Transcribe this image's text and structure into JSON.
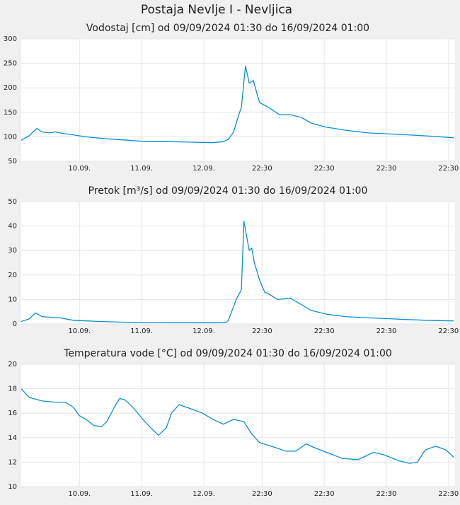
{
  "title": "Postaja Nevlje I - Nevljica",
  "chart_data": [
    {
      "type": "line",
      "title": "Vodostaj [cm] od 09/09/2024 01:30 do 16/09/2024 01:00",
      "color": "#0a8fd0",
      "x": [
        0,
        3,
        6,
        8,
        11,
        13,
        16,
        20,
        25,
        33,
        41,
        49,
        57,
        66,
        74,
        78,
        80,
        82,
        84,
        85,
        86.6,
        88,
        89.6,
        90.7,
        92,
        95.6,
        99.7,
        104,
        108,
        112,
        117.5,
        125.7,
        134,
        145,
        156,
        167
      ],
      "values": [
        93,
        102,
        117,
        110,
        108,
        110,
        107,
        104,
        100,
        96,
        93,
        90,
        90,
        89,
        88,
        90,
        95,
        110,
        145,
        160,
        245,
        210,
        215,
        195,
        170,
        160,
        145,
        145,
        140,
        128,
        120,
        113,
        108,
        105,
        102,
        98
      ],
      "xlim": [
        0,
        167.5
      ],
      "ylim": [
        50,
        300
      ],
      "yticks": [
        50,
        100,
        150,
        200,
        250,
        300
      ],
      "xticks": [
        {
          "value": 22.5,
          "label": "10.09."
        },
        {
          "value": 46.5,
          "label": "11.09."
        },
        {
          "value": 70.5,
          "label": "12.09."
        },
        {
          "value": 93,
          "label": "22:30"
        },
        {
          "value": 117,
          "label": "22:30"
        },
        {
          "value": 141,
          "label": "22:30"
        },
        {
          "value": 165,
          "label": "22:30"
        }
      ],
      "grid": true
    },
    {
      "type": "line",
      "title": "Pretok [m³/s] od 09/09/2024 01:30 do 16/09/2024 01:00",
      "color": "#0a8fd0",
      "x": [
        0,
        3,
        5.5,
        8,
        15,
        20,
        30,
        40,
        50,
        60,
        70,
        79,
        80,
        83,
        85,
        86,
        88,
        89,
        90,
        92,
        94,
        96,
        99,
        104,
        108,
        112,
        118,
        125,
        134,
        145,
        156,
        167
      ],
      "values": [
        1,
        2,
        4.5,
        3,
        2.5,
        1.5,
        1,
        0.7,
        0.6,
        0.5,
        0.5,
        0.5,
        1.5,
        10,
        14,
        42,
        30,
        31,
        25,
        18,
        13,
        12,
        10,
        10.5,
        8,
        5.5,
        4,
        3,
        2.5,
        2,
        1.5,
        1.2
      ],
      "xlim": [
        0,
        167.5
      ],
      "ylim": [
        0,
        50
      ],
      "yticks": [
        0,
        10,
        20,
        30,
        40,
        50
      ],
      "xticks": [
        {
          "value": 22.5,
          "label": "10.09."
        },
        {
          "value": 46.5,
          "label": "11.09."
        },
        {
          "value": 70.5,
          "label": "12.09."
        },
        {
          "value": 93,
          "label": "22:30"
        },
        {
          "value": 117,
          "label": "22:30"
        },
        {
          "value": 141,
          "label": "22:30"
        },
        {
          "value": 165,
          "label": "22:30"
        }
      ],
      "grid": true
    },
    {
      "type": "line",
      "title": "Temperatura vode [°C] od 09/09/2024 01:30 do 16/09/2024 01:00",
      "color": "#0a8fd0",
      "x": [
        0,
        3,
        8,
        13,
        17,
        20,
        22.5,
        25,
        28,
        31,
        33,
        36,
        38,
        40,
        43,
        47,
        50,
        53,
        56,
        58,
        61,
        65,
        70,
        74,
        78,
        82,
        86,
        89,
        92,
        98,
        102,
        106,
        110,
        113,
        118,
        124,
        130,
        136,
        140,
        146,
        150,
        153,
        156,
        160,
        164,
        167
      ],
      "values": [
        18,
        17.3,
        17,
        16.9,
        16.9,
        16.5,
        15.8,
        15.5,
        15,
        14.9,
        15.3,
        16.5,
        17.2,
        17.1,
        16.5,
        15.5,
        14.8,
        14.2,
        14.8,
        16,
        16.7,
        16.4,
        16,
        15.5,
        15.1,
        15.5,
        15.3,
        14.3,
        13.6,
        13.2,
        12.9,
        12.9,
        13.5,
        13.2,
        12.8,
        12.3,
        12.2,
        12.8,
        12.6,
        12.1,
        11.9,
        12,
        13,
        13.3,
        13,
        12.4
      ],
      "xlim": [
        0,
        167.5
      ],
      "ylim": [
        10,
        20
      ],
      "yticks": [
        10,
        12,
        14,
        16,
        18,
        20
      ],
      "xticks": [
        {
          "value": 22.5,
          "label": "10.09."
        },
        {
          "value": 46.5,
          "label": "11.09."
        },
        {
          "value": 70.5,
          "label": "12.09."
        },
        {
          "value": 93,
          "label": "22:30"
        },
        {
          "value": 117,
          "label": "22:30"
        },
        {
          "value": 141,
          "label": "22:30"
        },
        {
          "value": 165,
          "label": "22:30"
        }
      ],
      "grid": true
    }
  ]
}
